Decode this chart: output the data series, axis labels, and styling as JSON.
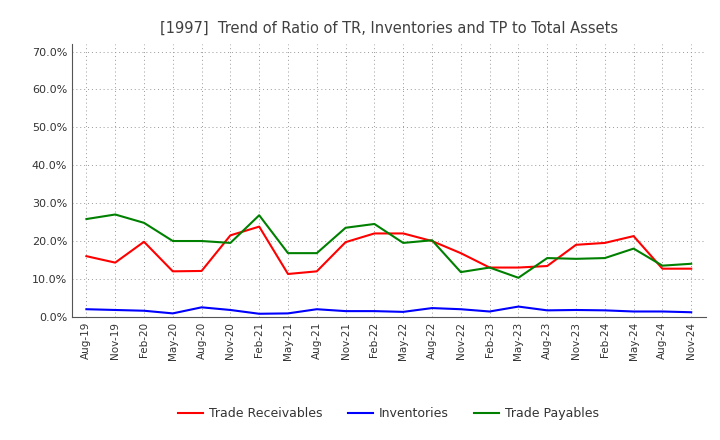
{
  "title": "[1997]  Trend of Ratio of TR, Inventories and TP to Total Assets",
  "x_labels": [
    "Aug-19",
    "Nov-19",
    "Feb-20",
    "May-20",
    "Aug-20",
    "Nov-20",
    "Feb-21",
    "May-21",
    "Aug-21",
    "Nov-21",
    "Feb-22",
    "May-22",
    "Aug-22",
    "Nov-22",
    "Feb-23",
    "May-23",
    "Aug-23",
    "Nov-23",
    "Feb-24",
    "May-24",
    "Aug-24",
    "Nov-24"
  ],
  "trade_receivables": [
    0.16,
    0.143,
    0.198,
    0.12,
    0.121,
    0.215,
    0.238,
    0.113,
    0.12,
    0.197,
    0.22,
    0.22,
    0.2,
    0.168,
    0.13,
    0.13,
    0.134,
    0.19,
    0.195,
    0.213,
    0.127,
    0.127
  ],
  "inventories": [
    0.02,
    0.018,
    0.016,
    0.009,
    0.025,
    0.018,
    0.008,
    0.009,
    0.02,
    0.015,
    0.015,
    0.013,
    0.023,
    0.02,
    0.014,
    0.027,
    0.017,
    0.018,
    0.017,
    0.014,
    0.014,
    0.012
  ],
  "trade_payables": [
    0.258,
    0.27,
    0.248,
    0.2,
    0.2,
    0.195,
    0.268,
    0.168,
    0.168,
    0.235,
    0.245,
    0.195,
    0.202,
    0.118,
    0.13,
    0.103,
    0.155,
    0.153,
    0.155,
    0.18,
    0.135,
    0.14
  ],
  "ylim": [
    0.0,
    0.72
  ],
  "yticks": [
    0.0,
    0.1,
    0.2,
    0.3,
    0.4,
    0.5,
    0.6,
    0.7
  ],
  "color_tr": "#ff0000",
  "color_inv": "#0000ff",
  "color_tp": "#008000",
  "legend_labels": [
    "Trade Receivables",
    "Inventories",
    "Trade Payables"
  ],
  "bg_color": "#ffffff",
  "grid_color": "#999999",
  "title_color": "#404040"
}
